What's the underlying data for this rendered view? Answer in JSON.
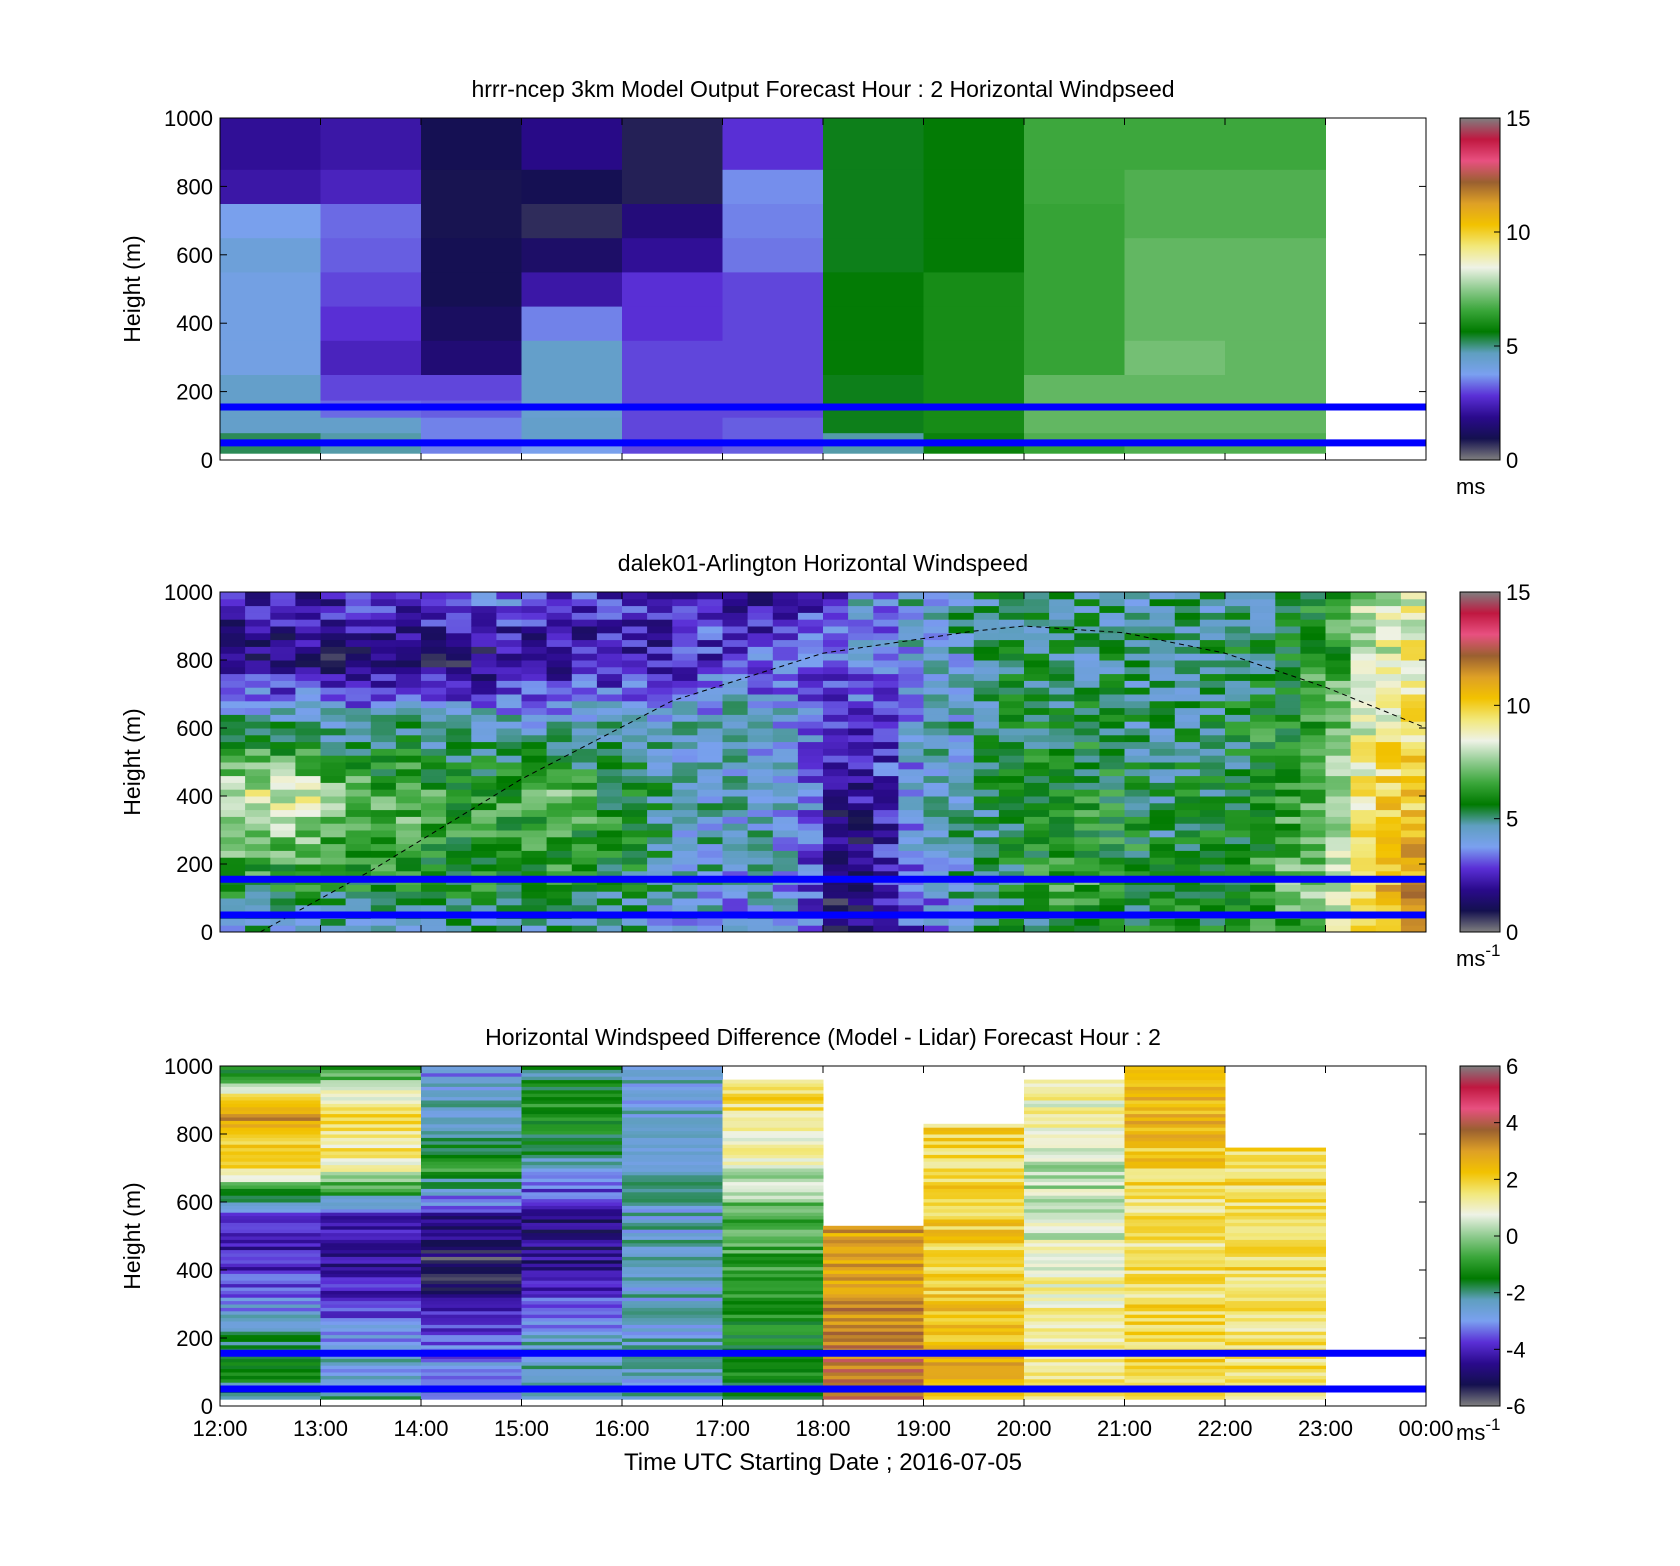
{
  "figure": {
    "shared_xlabel": "Time UTC  Starting Date ; 2016-07-05"
  },
  "colors": {
    "pbl_lines": "#0000ff",
    "ramp": [
      "#7f7f7f",
      "#14104f",
      "#2a0a8c",
      "#5a2fd6",
      "#7aa0f0",
      "#5f9fc0",
      "#007a00",
      "#3aa63a",
      "#8fcb8f",
      "#eef2e6",
      "#f2e87a",
      "#f2c200",
      "#dea026",
      "#9a6030",
      "#e85080",
      "#c01840",
      "#7f7f7f"
    ]
  },
  "chart_data": [
    {
      "id": "model",
      "type": "heatmap",
      "title": "hrrr-ncep 3km Model Output   Forecast Hour : 2 Horizontal Windpseed",
      "ylabel": "Height (m)",
      "xlabel": "",
      "x_tick_labels": [],
      "y_ticks": [
        "0",
        "200",
        "400",
        "600",
        "800",
        "1000"
      ],
      "ylim": [
        0,
        1000
      ],
      "xlim_hours": [
        12,
        24
      ],
      "colorbar": {
        "min": 0,
        "max": 15,
        "ticks": [
          "0",
          "5",
          "10",
          "15"
        ],
        "unit": "ms",
        "unit_sup": ""
      },
      "pbl_lines_m": [
        50,
        155
      ],
      "hours": [
        12,
        13,
        14,
        15,
        16,
        17,
        18,
        19,
        20,
        21,
        22
      ],
      "levels_m": [
        30,
        60,
        100,
        150,
        200,
        300,
        400,
        500,
        600,
        700,
        800,
        900
      ],
      "values": [
        [
          5.2,
          5.2,
          4.5,
          4.5,
          4.5,
          4.0,
          4.0,
          4.0,
          4.2,
          3.8,
          2.2,
          2.0
        ],
        [
          4.8,
          4.8,
          4.5,
          3.3,
          3.0,
          2.5,
          2.8,
          3.0,
          3.2,
          3.3,
          2.5,
          2.2
        ],
        [
          3.5,
          3.5,
          3.5,
          3.2,
          3.0,
          1.5,
          1.2,
          1.0,
          1.0,
          0.9,
          0.9,
          1.0
        ],
        [
          3.8,
          4.5,
          4.5,
          4.4,
          4.5,
          4.5,
          3.5,
          2.2,
          1.3,
          0.7,
          1.0,
          1.8
        ],
        [
          3.0,
          3.0,
          3.0,
          3.0,
          3.0,
          3.0,
          2.8,
          2.8,
          2.0,
          1.6,
          0.8,
          0.8
        ],
        [
          3.2,
          3.2,
          3.2,
          3.0,
          3.0,
          3.0,
          3.0,
          3.0,
          3.4,
          3.5,
          3.6,
          2.8
        ],
        [
          4.8,
          4.8,
          5.5,
          5.5,
          5.5,
          5.6,
          5.6,
          5.6,
          5.5,
          5.5,
          5.5,
          5.5
        ],
        [
          5.8,
          5.8,
          6.0,
          6.0,
          6.0,
          6.0,
          6.0,
          6.0,
          5.6,
          5.6,
          5.6,
          5.6
        ],
        [
          6.5,
          6.8,
          7.0,
          7.0,
          7.0,
          6.5,
          6.5,
          6.5,
          6.5,
          6.5,
          6.6,
          6.6
        ],
        [
          6.8,
          6.8,
          7.0,
          7.0,
          7.0,
          7.2,
          7.0,
          7.0,
          7.0,
          6.8,
          6.8,
          6.6
        ],
        [
          6.8,
          6.8,
          7.0,
          7.0,
          7.0,
          7.0,
          7.0,
          7.0,
          7.0,
          6.8,
          6.8,
          6.6
        ]
      ]
    },
    {
      "id": "lidar",
      "type": "heatmap",
      "title": "dalek01-Arlington  Horizontal Windspeed",
      "ylabel": "Height (m)",
      "xlabel": "",
      "x_tick_labels": [],
      "y_ticks": [
        "0",
        "200",
        "400",
        "600",
        "800",
        "1000"
      ],
      "ylim": [
        0,
        1000
      ],
      "xlim_hours": [
        12,
        24
      ],
      "colorbar": {
        "min": 0,
        "max": 15,
        "ticks": [
          "0",
          "5",
          "10",
          "15"
        ],
        "unit": "ms",
        "unit_sup": "-1"
      },
      "pbl_lines_m": [
        50,
        155
      ],
      "column_hours": [
        12.0,
        12.25,
        12.5,
        12.75,
        13.0,
        13.25,
        13.5,
        13.75,
        14.0,
        14.25,
        14.5,
        14.75,
        15.0,
        15.25,
        15.5,
        15.75,
        16.0,
        16.25,
        16.5,
        16.75,
        17.0,
        17.25,
        17.5,
        17.75,
        18.0,
        18.25,
        18.5,
        18.75,
        19.0,
        19.25,
        19.5,
        19.75,
        20.0,
        20.25,
        20.5,
        20.75,
        21.0,
        21.25,
        21.5,
        21.75,
        22.0,
        22.25,
        22.5,
        22.75,
        23.0,
        23.25,
        23.5,
        23.75
      ],
      "column_width_h": 0.25,
      "profile_levels_m": [
        0,
        150,
        400,
        620,
        800,
        1000
      ],
      "profiles": [
        [
          4.5,
          6.0,
          8.5,
          5.0,
          1.5,
          2.5
        ],
        [
          4.5,
          6.0,
          8.5,
          5.0,
          1.5,
          2.5
        ],
        [
          4.5,
          6.0,
          8.5,
          4.5,
          1.5,
          2.5
        ],
        [
          4.5,
          6.0,
          8.5,
          4.5,
          1.5,
          2.5
        ],
        [
          4.5,
          6.0,
          7.5,
          4.5,
          1.5,
          2.5
        ],
        [
          4.5,
          6.0,
          7.0,
          4.5,
          1.2,
          2.8
        ],
        [
          4.5,
          6.0,
          7.0,
          4.5,
          1.2,
          3.0
        ],
        [
          4.5,
          6.0,
          7.0,
          4.5,
          1.2,
          3.0
        ],
        [
          4.5,
          6.0,
          6.5,
          4.5,
          1.2,
          3.2
        ],
        [
          4.5,
          6.0,
          6.5,
          4.5,
          1.2,
          3.5
        ],
        [
          4.5,
          6.0,
          6.5,
          4.5,
          1.2,
          3.5
        ],
        [
          4.5,
          6.0,
          6.5,
          4.5,
          1.5,
          3.5
        ],
        [
          4.5,
          6.0,
          6.5,
          4.5,
          1.5,
          3.0
        ],
        [
          4.5,
          6.0,
          7.0,
          4.5,
          1.8,
          2.8
        ],
        [
          4.5,
          6.0,
          6.5,
          4.5,
          2.0,
          2.8
        ],
        [
          4.5,
          5.5,
          6.0,
          4.5,
          2.0,
          2.8
        ],
        [
          4.5,
          5.5,
          5.5,
          4.5,
          2.2,
          2.5
        ],
        [
          4.0,
          5.0,
          5.0,
          4.5,
          2.2,
          2.5
        ],
        [
          4.0,
          4.5,
          4.5,
          4.2,
          2.5,
          2.5
        ],
        [
          4.0,
          4.5,
          4.5,
          4.0,
          2.8,
          2.5
        ],
        [
          4.0,
          4.0,
          4.5,
          4.5,
          3.0,
          2.0
        ],
        [
          4.0,
          4.5,
          4.5,
          4.0,
          3.0,
          2.0
        ],
        [
          4.0,
          4.0,
          4.0,
          4.0,
          3.2,
          2.0
        ],
        [
          3.0,
          3.0,
          3.5,
          3.5,
          3.2,
          2.5
        ],
        [
          1.5,
          1.2,
          1.5,
          3.0,
          3.2,
          3.0
        ],
        [
          1.5,
          1.5,
          2.0,
          3.0,
          3.5,
          4.0
        ],
        [
          2.0,
          2.5,
          2.5,
          3.0,
          3.5,
          4.0
        ],
        [
          3.0,
          3.5,
          4.0,
          4.0,
          4.0,
          4.5
        ],
        [
          3.5,
          4.0,
          4.5,
          4.5,
          4.5,
          4.5
        ],
        [
          4.5,
          4.5,
          4.5,
          4.5,
          4.5,
          4.8
        ],
        [
          4.5,
          5.0,
          5.0,
          5.0,
          5.0,
          5.0
        ],
        [
          5.0,
          5.5,
          5.5,
          5.5,
          5.2,
          5.0
        ],
        [
          5.5,
          6.0,
          6.0,
          5.5,
          5.0,
          5.0
        ],
        [
          6.0,
          6.5,
          6.0,
          5.5,
          5.0,
          4.8
        ],
        [
          6.0,
          6.5,
          6.0,
          5.5,
          5.0,
          4.8
        ],
        [
          6.0,
          6.0,
          6.0,
          5.5,
          5.0,
          4.8
        ],
        [
          5.5,
          6.0,
          5.5,
          5.0,
          5.0,
          4.8
        ],
        [
          5.5,
          5.5,
          5.0,
          4.8,
          4.8,
          4.8
        ],
        [
          6.0,
          6.0,
          5.5,
          5.0,
          5.0,
          4.8
        ],
        [
          6.0,
          6.0,
          5.5,
          5.2,
          5.0,
          4.8
        ],
        [
          6.0,
          6.0,
          5.5,
          5.5,
          5.5,
          5.0
        ],
        [
          6.0,
          6.5,
          6.0,
          6.0,
          5.5,
          5.0
        ],
        [
          6.5,
          7.0,
          6.5,
          6.0,
          6.0,
          5.5
        ],
        [
          7.0,
          7.5,
          7.0,
          6.5,
          6.5,
          6.0
        ],
        [
          8.5,
          8.5,
          8.0,
          7.0,
          6.5,
          6.5
        ],
        [
          9.5,
          9.5,
          9.0,
          8.5,
          8.0,
          7.5
        ],
        [
          10.5,
          10.5,
          9.8,
          9.0,
          8.5,
          8.0
        ],
        [
          11.5,
          11.0,
          10.0,
          9.5,
          9.0,
          8.5
        ]
      ],
      "annotations": [
        {
          "type": "dashed-curve",
          "points_hours_m": [
            [
              12.4,
              0
            ],
            [
              13.5,
              180
            ],
            [
              15.0,
              450
            ],
            [
              16.5,
              680
            ],
            [
              18.0,
              820
            ],
            [
              19.5,
              885
            ],
            [
              20.0,
              900
            ],
            [
              21.0,
              880
            ],
            [
              22.0,
              820
            ],
            [
              23.0,
              720
            ],
            [
              24.0,
              600
            ]
          ]
        }
      ]
    },
    {
      "id": "difference",
      "type": "heatmap",
      "title": "Horizontal Windspeed Difference (Model - Lidar) Forecast Hour : 2",
      "ylabel": "Height (m)",
      "xlabel": "Time UTC  Starting Date ; 2016-07-05",
      "x_tick_labels": [
        "12:00",
        "13:00",
        "14:00",
        "15:00",
        "16:00",
        "17:00",
        "18:00",
        "19:00",
        "20:00",
        "21:00",
        "22:00",
        "23:00",
        "00:00"
      ],
      "y_ticks": [
        "0",
        "200",
        "400",
        "600",
        "800",
        "1000"
      ],
      "ylim": [
        0,
        1000
      ],
      "xlim_hours": [
        12,
        24
      ],
      "colorbar": {
        "min": -6,
        "max": 6,
        "ticks": [
          "-6",
          "-4",
          "-2",
          "0",
          "2",
          "4",
          "6"
        ],
        "unit": "ms",
        "unit_sup": "-1"
      },
      "pbl_lines_m": [
        50,
        155
      ],
      "hours": [
        12,
        13,
        14,
        15,
        16,
        17,
        18,
        19,
        20,
        21,
        22
      ],
      "top_m": [
        1000,
        1000,
        1000,
        1000,
        1000,
        960,
        530,
        830,
        960,
        1000,
        760
      ],
      "profile_levels_m": [
        0,
        200,
        400,
        550,
        700,
        850,
        1000
      ],
      "profiles": [
        [
          -1.5,
          -2.0,
          -4.0,
          -4.2,
          1.5,
          3.0,
          -1.5
        ],
        [
          -2.0,
          -3.0,
          -4.5,
          -4.0,
          1.0,
          2.0,
          -1.0
        ],
        [
          -2.5,
          -3.5,
          -5.5,
          -4.5,
          -1.0,
          -2.5,
          -3.0
        ],
        [
          -2.0,
          -2.5,
          -4.5,
          -4.8,
          -2.5,
          -1.0,
          -2.0
        ],
        [
          -2.5,
          -2.5,
          -2.5,
          -2.5,
          -2.5,
          -2.5,
          -2.5
        ],
        [
          -1.5,
          -1.2,
          -1.0,
          -0.5,
          0.5,
          1.5,
          1.8
        ],
        [
          3.5,
          3.5,
          3.0,
          2.8,
          2.8,
          2.8,
          2.8
        ],
        [
          2.5,
          2.5,
          2.0,
          2.0,
          1.8,
          1.8,
          1.8
        ],
        [
          1.5,
          1.5,
          1.0,
          0.5,
          0.2,
          1.0,
          1.2
        ],
        [
          1.5,
          1.8,
          1.5,
          1.5,
          2.0,
          2.5,
          2.0
        ],
        [
          1.5,
          1.5,
          1.8,
          1.8,
          1.8,
          1.8,
          1.8
        ]
      ]
    }
  ]
}
